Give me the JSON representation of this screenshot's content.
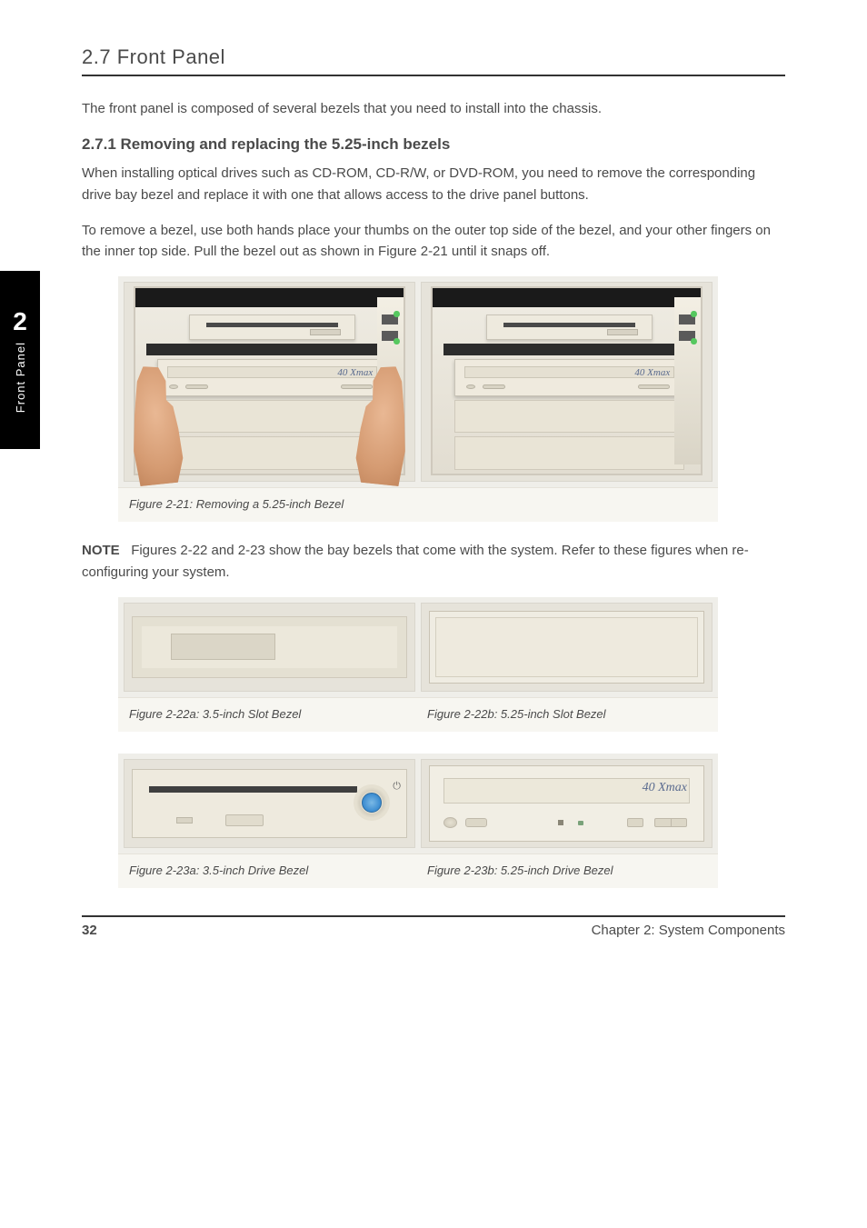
{
  "page": {
    "title": "2.7 Front Panel",
    "number": "32",
    "footer_doc": "Chapter 2: System Components",
    "side_tab_number": "2",
    "side_tab_label": "Front Panel"
  },
  "intro": "The front panel is composed of several bezels that you need to install into the chassis.",
  "section1": {
    "heading": "2.7.1 Removing and replacing the 5.25-inch bezels",
    "p1": "When installing optical drives such as CD-ROM, CD-R/W, or DVD-ROM, you need to remove the corresponding drive bay bezel and replace it with one that allows access to the drive panel buttons.",
    "p2": "To remove a bezel, use both hands place your thumbs on the outer top side of the bezel, and your other fingers on the inner top side. Pull the bezel out as shown in Figure 2-21 until it snaps off.",
    "fig2_caption": "Figure 2-21: Removing a 5.25-inch Bezel",
    "note_label": "NOTE",
    "note_text": "Figures 2-22 and 2-23 show the bay bezels that come with the system. Refer to these figures when re-configuring your system.",
    "fig3_caption_a": "Figure 2-22a: 3.5-inch Slot Bezel",
    "fig3_caption_b": "Figure 2-22b: 5.25-inch Slot Bezel",
    "fig4_caption_a": "Figure 2-23a: 3.5-inch Drive Bezel",
    "fig4_caption_b": "Figure 2-23b: 5.25-inch Drive Bezel"
  },
  "labels": {
    "speed_badge": "40 Xmax",
    "power_on_glyph": "⏻"
  },
  "colors": {
    "text": "#4a4a4a",
    "rule": "#333333",
    "panel_bg": "#efeee9",
    "beige": "#eeeade",
    "blue_btn": "#3a8bd0",
    "cd_label": "#5a6b8f"
  }
}
